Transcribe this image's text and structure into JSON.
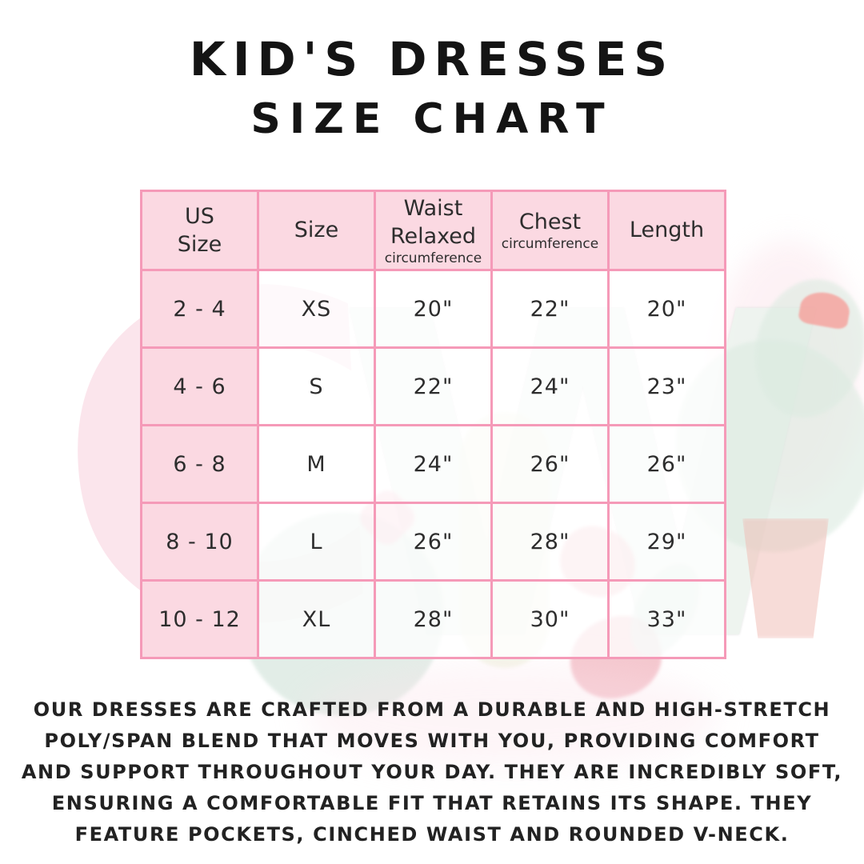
{
  "title": {
    "line1": "KID'S DRESSES",
    "line2": "SIZE CHART"
  },
  "chart_data": {
    "type": "table",
    "title": "KID'S DRESSES SIZE CHART",
    "columns": [
      "US Size",
      "Size",
      "Waist Relaxed circumference",
      "Chest circumference",
      "Length"
    ],
    "rows": [
      [
        "2 - 4",
        "XS",
        "20\"",
        "22\"",
        "20\""
      ],
      [
        "4 - 6",
        "S",
        "22\"",
        "24\"",
        "23\""
      ],
      [
        "6 - 8",
        "M",
        "24\"",
        "26\"",
        "26\""
      ],
      [
        "8 - 10",
        "L",
        "26\"",
        "28\"",
        "29\""
      ],
      [
        "10 - 12",
        "XL",
        "28\"",
        "30\"",
        "33\""
      ]
    ]
  },
  "table": {
    "headers": [
      {
        "line1": "US",
        "line2": "Size",
        "sub": ""
      },
      {
        "line1": "Size",
        "line2": "",
        "sub": ""
      },
      {
        "line1": "Waist",
        "line2": "Relaxed",
        "sub": "circumference"
      },
      {
        "line1": "Chest",
        "line2": "",
        "sub": "circumference"
      },
      {
        "line1": "Length",
        "line2": "",
        "sub": ""
      }
    ]
  },
  "description_lines": [
    "OUR DRESSES ARE CRAFTED FROM A DURABLE AND HIGH-STRETCH",
    "POLY/SPAN BLEND THAT MOVES WITH YOU, PROVIDING COMFORT",
    "AND SUPPORT THROUGHOUT YOUR DAY. THEY ARE INCREDIBLY SOFT,",
    "ENSURING A COMFORTABLE FIT THAT RETAINS ITS SHAPE. THEY",
    "FEATURE POCKETS, CINCHED WAIST AND ROUNDED V-NECK."
  ],
  "watermark": {
    "letter_c": "C",
    "letter_w": "W"
  },
  "colors": {
    "grid_pink": "#f59ab8",
    "cell_pink": "#fbd9e2",
    "watermark_green": "#dcebe1",
    "watermark_coral": "#f6a09b",
    "text_dark": "#2d2d2d",
    "title_black": "#141414"
  }
}
